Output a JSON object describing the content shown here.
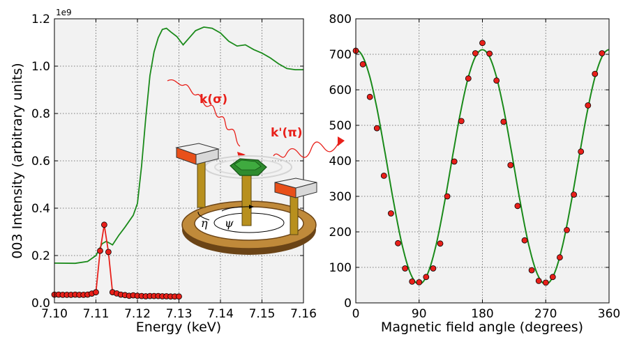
{
  "chart_data": [
    {
      "type": "line",
      "xlabel": "Energy (keV)",
      "ylabel": "003 Intensity (arbitrary units)",
      "offset_text": "1e9",
      "xlim": [
        7.1,
        7.16
      ],
      "ylim": [
        0,
        1.2
      ],
      "xticks": [
        "7.10",
        "7.11",
        "7.12",
        "7.13",
        "7.14",
        "7.15",
        "7.16"
      ],
      "yticks": [
        "0.0",
        "0.2",
        "0.4",
        "0.6",
        "0.8",
        "1.0",
        "1.2"
      ],
      "grid": true,
      "series": [
        {
          "color": "#1a8a1a",
          "style": "line",
          "x": [
            7.1,
            7.105,
            7.108,
            7.11,
            7.1115,
            7.1125,
            7.114,
            7.1155,
            7.117,
            7.119,
            7.12,
            7.121,
            7.122,
            7.123,
            7.124,
            7.125,
            7.126,
            7.127,
            7.128,
            7.1295,
            7.131,
            7.1325,
            7.134,
            7.136,
            7.138,
            7.14,
            7.142,
            7.144,
            7.146,
            7.148,
            7.15,
            7.152,
            7.154,
            7.156,
            7.158,
            7.16
          ],
          "y": [
            0.168,
            0.167,
            0.175,
            0.2,
            0.25,
            0.26,
            0.245,
            0.285,
            0.32,
            0.37,
            0.42,
            0.58,
            0.78,
            0.96,
            1.06,
            1.12,
            1.155,
            1.16,
            1.145,
            1.125,
            1.09,
            1.12,
            1.15,
            1.165,
            1.16,
            1.14,
            1.105,
            1.085,
            1.09,
            1.07,
            1.055,
            1.035,
            1.01,
            0.99,
            0.985,
            0.985
          ]
        },
        {
          "color": "#e8201a",
          "style": "line-markers",
          "x": [
            7.1,
            7.101,
            7.102,
            7.103,
            7.104,
            7.105,
            7.106,
            7.107,
            7.108,
            7.109,
            7.11,
            7.111,
            7.112,
            7.113,
            7.114,
            7.115,
            7.116,
            7.117,
            7.118,
            7.119,
            7.12,
            7.121,
            7.122,
            7.123,
            7.124,
            7.125,
            7.126,
            7.127,
            7.128,
            7.129,
            7.13
          ],
          "y": [
            0.035,
            0.035,
            0.034,
            0.034,
            0.034,
            0.035,
            0.034,
            0.034,
            0.035,
            0.039,
            0.045,
            0.22,
            0.33,
            0.215,
            0.045,
            0.04,
            0.035,
            0.033,
            0.03,
            0.032,
            0.03,
            0.029,
            0.028,
            0.029,
            0.029,
            0.029,
            0.028,
            0.028,
            0.027,
            0.027,
            0.027
          ]
        }
      ]
    },
    {
      "type": "scatter",
      "xlabel": "Magnetic field angle (degrees)",
      "ylabel": "",
      "xlim": [
        0,
        360
      ],
      "ylim": [
        0,
        800
      ],
      "xticks": [
        "0",
        "90",
        "180",
        "270",
        "360"
      ],
      "yticks": [
        "0",
        "100",
        "200",
        "300",
        "400",
        "500",
        "600",
        "700",
        "800"
      ],
      "grid": true,
      "series": [
        {
          "color": "#e8201a",
          "style": "markers",
          "x": [
            0,
            10,
            20,
            30,
            40,
            50,
            60,
            70,
            80,
            90,
            100,
            110,
            120,
            130,
            140,
            150,
            160,
            170,
            180,
            190,
            200,
            210,
            220,
            230,
            240,
            250,
            260,
            270,
            280,
            290,
            300,
            310,
            320,
            330,
            340,
            350
          ],
          "y": [
            710,
            672,
            580,
            492,
            358,
            252,
            168,
            97,
            60,
            58,
            73,
            97,
            167,
            300,
            398,
            512,
            632,
            703,
            732,
            702,
            626,
            510,
            388,
            273,
            176,
            92,
            62,
            57,
            73,
            128,
            205,
            305,
            426,
            556,
            645,
            703
          ]
        },
        {
          "color": "#1a8a1a",
          "style": "line",
          "function": "383 + 330 * cos(2 * angle)"
        }
      ]
    }
  ],
  "annotations": {
    "incident_beam": "k(σ)",
    "scattered_beam": "k'(π)",
    "eta": "η",
    "psi": "ψ"
  }
}
